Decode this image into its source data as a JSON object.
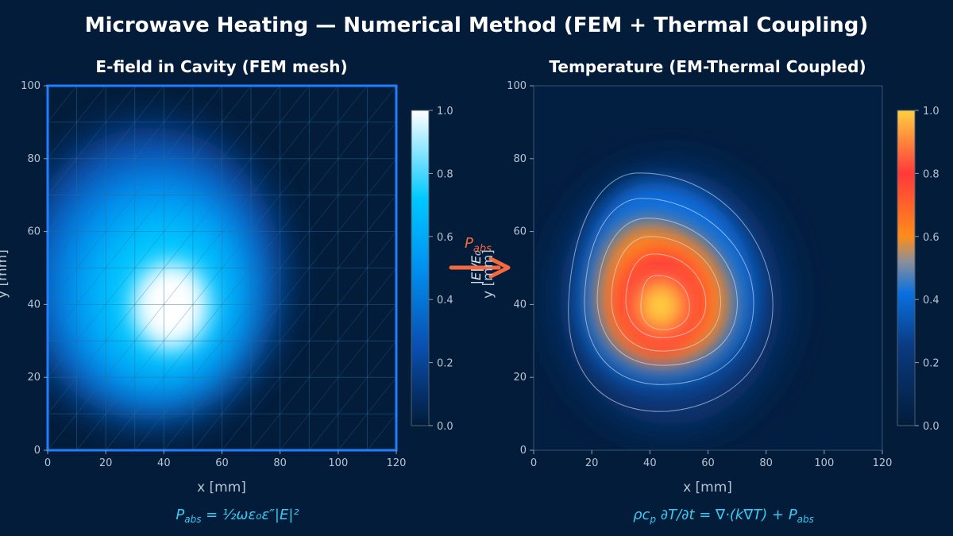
{
  "suptitle": "Microwave Heating — Numerical Method (FEM + Thermal Coupling)",
  "colors": {
    "background": "#021c3a",
    "efield_frame": "#1e7fff",
    "equation": "#3cc8f0",
    "arrow": "#f26a3d",
    "mesh": "#2a6e9e"
  },
  "chart_data": [
    {
      "type": "heatmap",
      "title": "E-field in Cavity (FEM mesh)",
      "xlabel": "x [mm]",
      "ylabel": "y [mm]",
      "xlim": [
        0,
        120
      ],
      "ylim": [
        0,
        100
      ],
      "xticks": [
        0,
        20,
        40,
        60,
        80,
        100,
        120
      ],
      "yticks": [
        0,
        20,
        40,
        60,
        80,
        100
      ],
      "colormap": [
        "#021c3a",
        "#0a4fb0",
        "#0090f0",
        "#00c8ff",
        "#ffffff"
      ],
      "colorbar": {
        "label": "|E|/E₀",
        "range": [
          0,
          1.0
        ],
        "ticks": [
          "0.0",
          "0.2",
          "0.4",
          "0.6",
          "0.8",
          "1.0"
        ]
      },
      "peak": {
        "x": 42,
        "y": 38,
        "value": 1.0
      },
      "mesh": {
        "nx": 12,
        "ny": 10
      },
      "equation": {
        "lhs": "P",
        "lhs_sub": "abs",
        "rhs": " = ½ωε₀ε″|E|²"
      }
    },
    {
      "type": "heatmap",
      "title": "Temperature (EM-Thermal Coupled)",
      "xlabel": "x [mm]",
      "ylabel": "y [mm]",
      "xlim": [
        0,
        120
      ],
      "ylim": [
        0,
        100
      ],
      "xticks": [
        0,
        20,
        40,
        60,
        80,
        100,
        120
      ],
      "yticks": [
        0,
        20,
        40,
        60,
        80,
        100
      ],
      "colormap": [
        "#021c3a",
        "#0a3a80",
        "#0a70e0",
        "#ff8c1a",
        "#ff3a3a",
        "#ffcf40"
      ],
      "colorbar": {
        "label": "",
        "range": [
          0,
          1.0
        ],
        "ticks": [
          "0.0",
          "0.2",
          "0.4",
          "0.6",
          "0.8",
          "1.0"
        ]
      },
      "peak": {
        "x": 43,
        "y": 40,
        "value": 1.0
      },
      "contour_levels": [
        0.1,
        0.25,
        0.4,
        0.55,
        0.7,
        0.85
      ],
      "equation": {
        "lhs": "ρc",
        "lhs_sub": "p",
        "rhs": "∂T/∂t = ∇·(k∇T) + P",
        "rhs_sub": "abs"
      }
    }
  ],
  "coupling_arrow": {
    "label": "P",
    "label_sub": "abs"
  }
}
